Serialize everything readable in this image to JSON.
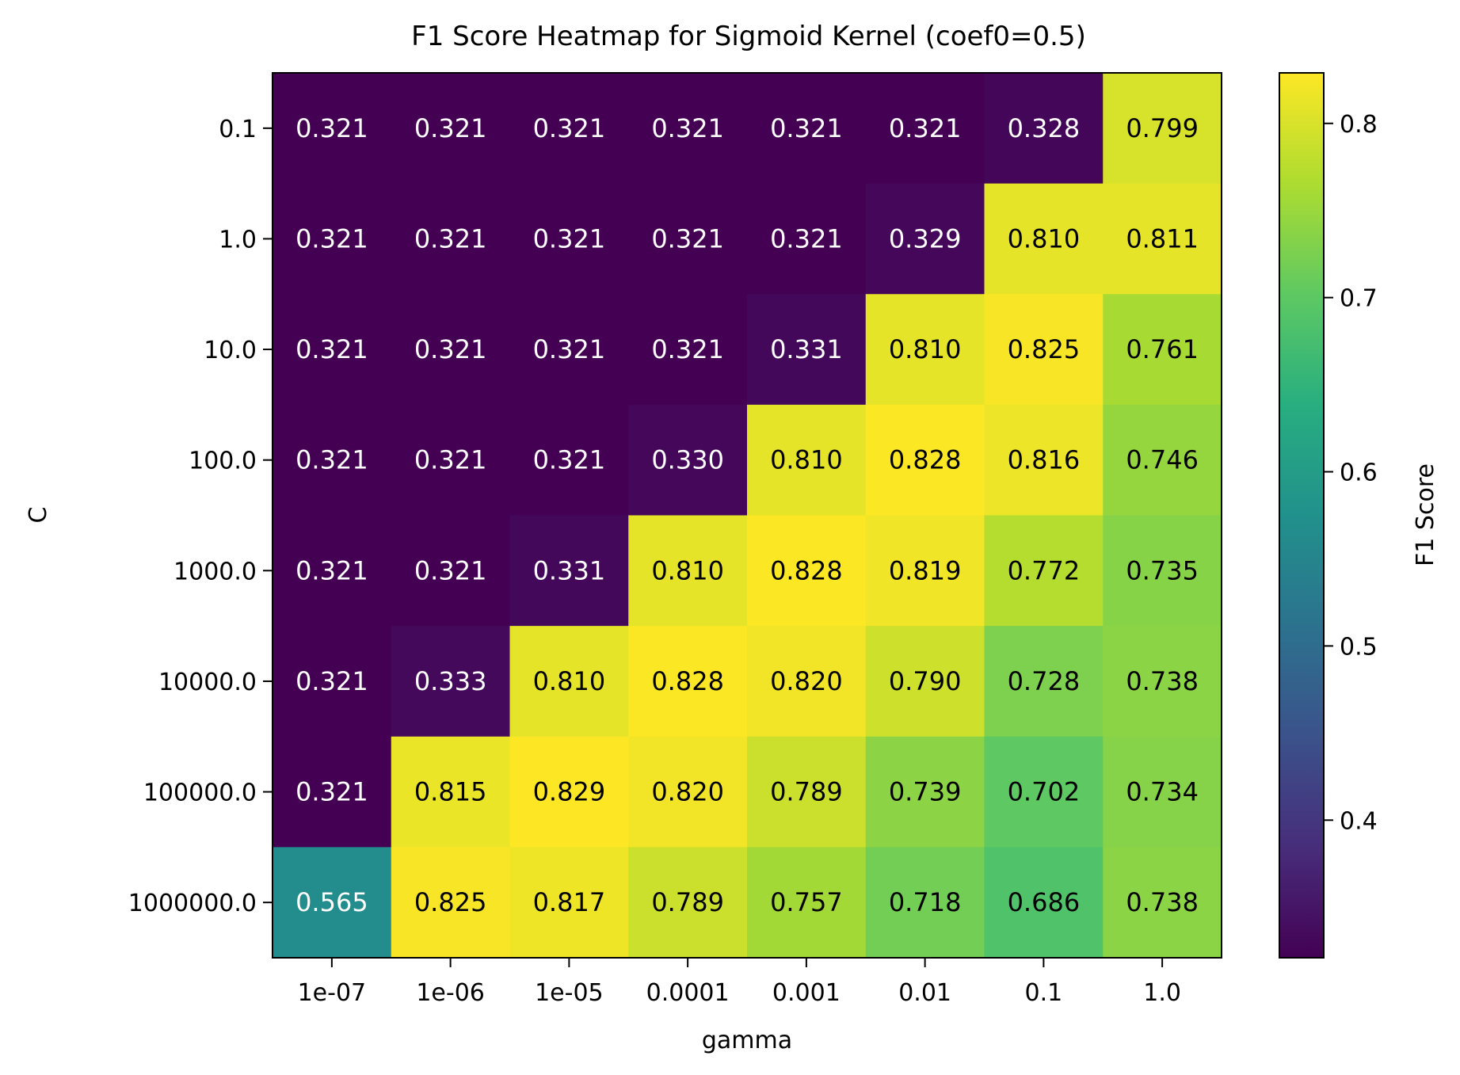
{
  "chart_data": {
    "type": "heatmap",
    "title": "F1 Score Heatmap for Sigmoid Kernel (coef0=0.5)",
    "xlabel": "gamma",
    "ylabel": "C",
    "x_categories": [
      "1e-07",
      "1e-06",
      "1e-05",
      "0.0001",
      "0.001",
      "0.01",
      "0.1",
      "1.0"
    ],
    "y_categories": [
      "0.1",
      "1.0",
      "10.0",
      "100.0",
      "1000.0",
      "10000.0",
      "100000.0",
      "1000000.0"
    ],
    "values": [
      [
        0.321,
        0.321,
        0.321,
        0.321,
        0.321,
        0.321,
        0.328,
        0.799
      ],
      [
        0.321,
        0.321,
        0.321,
        0.321,
        0.321,
        0.329,
        0.81,
        0.811
      ],
      [
        0.321,
        0.321,
        0.321,
        0.321,
        0.331,
        0.81,
        0.825,
        0.761
      ],
      [
        0.321,
        0.321,
        0.321,
        0.33,
        0.81,
        0.828,
        0.816,
        0.746
      ],
      [
        0.321,
        0.321,
        0.331,
        0.81,
        0.828,
        0.819,
        0.772,
        0.735
      ],
      [
        0.321,
        0.333,
        0.81,
        0.828,
        0.82,
        0.79,
        0.728,
        0.738
      ],
      [
        0.321,
        0.815,
        0.829,
        0.82,
        0.789,
        0.739,
        0.702,
        0.734
      ],
      [
        0.565,
        0.825,
        0.817,
        0.789,
        0.757,
        0.718,
        0.686,
        0.738
      ]
    ],
    "colormap": "viridis",
    "colorbar": {
      "label": "F1 Score",
      "range": [
        0.321,
        0.829
      ],
      "ticks": [
        "0.4",
        "0.5",
        "0.6",
        "0.7",
        "0.8"
      ]
    },
    "annotations": "cell values printed with 3 decimals; white text on dark cells, black text on light cells",
    "grid": false
  }
}
